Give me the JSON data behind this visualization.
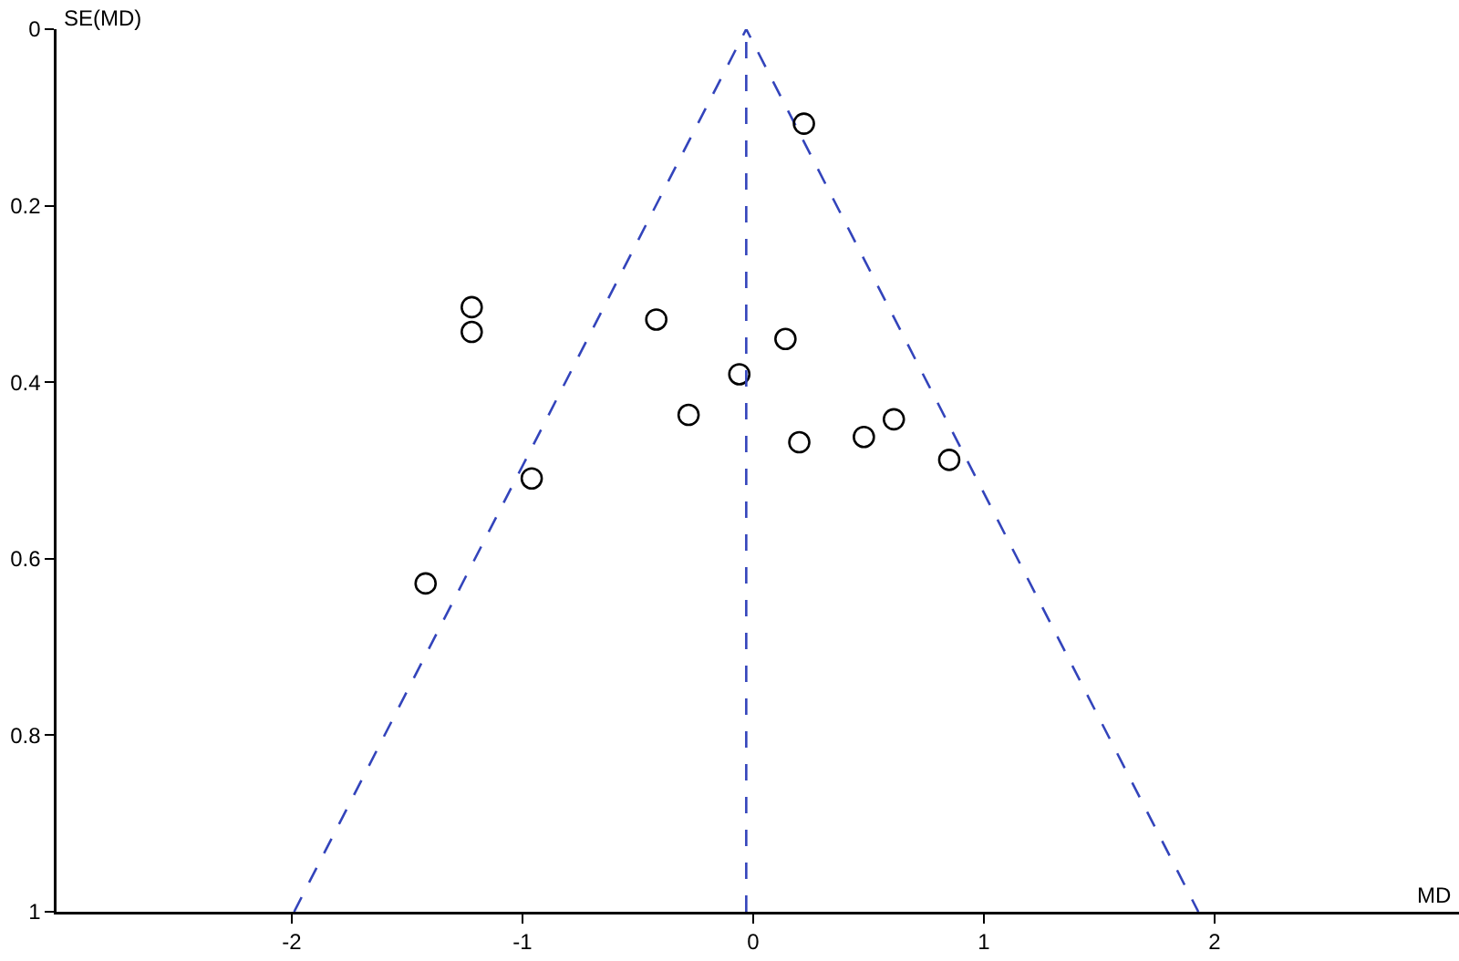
{
  "chart_data": {
    "type": "scatter",
    "xlabel": "MD",
    "ylabel": "SE(MD)",
    "xlim": [
      -3.02,
      3.06
    ],
    "xticks": [
      -2,
      -1,
      0,
      1,
      2
    ],
    "ylim": [
      1,
      0
    ],
    "yticks": [
      0,
      0.2,
      0.4,
      0.6,
      0.8,
      1
    ],
    "grid": false,
    "marker": "circle",
    "series": [
      {
        "color": "#000000",
        "x": [
          0.22,
          -1.22,
          -1.22,
          -0.42,
          -0.28,
          -0.96,
          -1.42,
          0.14,
          -0.06,
          0.2,
          0.48,
          0.61,
          0.85
        ],
        "values": [
          0.107,
          0.315,
          0.343,
          0.329,
          0.437,
          0.509,
          0.628,
          0.351,
          0.391,
          0.468,
          0.462,
          0.442,
          0.488
        ]
      },
      {
        "type": "line",
        "color": "#3344bb",
        "line_style": "dashed",
        "marker": "none",
        "x": [
          -1.99,
          -0.03,
          1.93
        ],
        "values": [
          1,
          0,
          1
        ]
      }
    ],
    "ref_lines": [
      {
        "axis": "x",
        "value": -0.03,
        "color": "#3344bb",
        "line_style": "dashed"
      }
    ]
  }
}
